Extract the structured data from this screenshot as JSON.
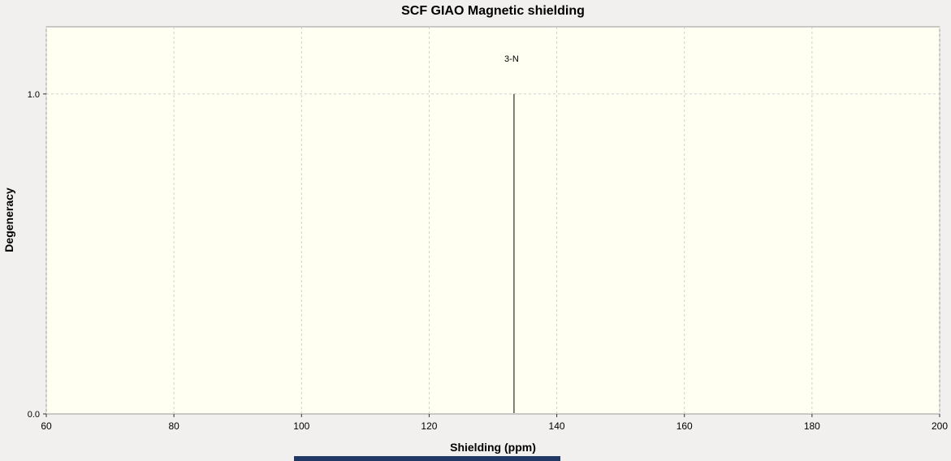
{
  "window": {
    "background": "#f1f0ee",
    "bottom_strip_color": "#1f3864"
  },
  "chart_data": {
    "type": "stem",
    "title": "SCF GIAO Magnetic shielding",
    "xlabel": "Shielding (ppm)",
    "ylabel": "Degeneracy",
    "xlim": [
      60,
      200
    ],
    "ylim": [
      0,
      1.21
    ],
    "x_ticks": [
      60,
      80,
      100,
      120,
      140,
      160,
      180,
      200
    ],
    "y_ticks": [
      0.0,
      1.0
    ],
    "grid": "dashed",
    "legend": "none",
    "plot_bg": "#fffff2",
    "grid_color": "#cfcfcf",
    "axis_color": "#9a9a9a",
    "tick_color": "#333333",
    "text_color": "#000000",
    "peak_color": "#000000",
    "peaks": [
      {
        "x": 133.3,
        "height": 1.0,
        "label": "3-N"
      }
    ]
  }
}
